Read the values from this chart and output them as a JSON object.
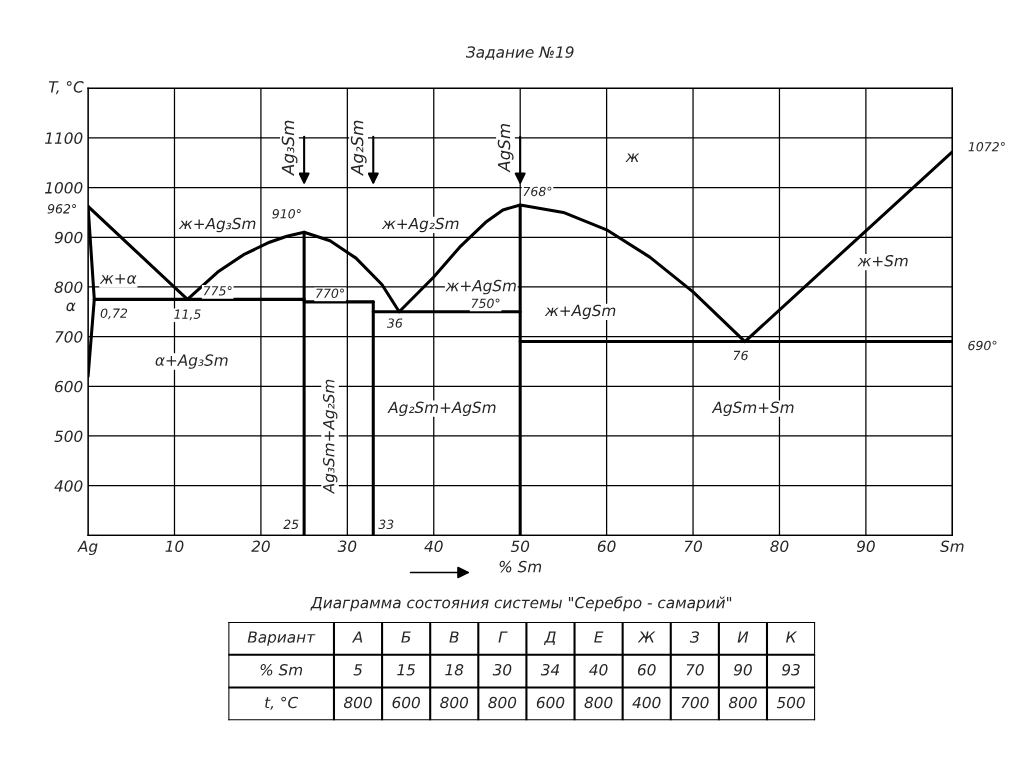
{
  "chart_data": [
    {
      "type": "line",
      "title": "Задание №19",
      "xlabel": "% Sm",
      "ylabel": "T, °C",
      "xlim": [
        0,
        100
      ],
      "ylim": [
        300,
        1200
      ],
      "xticks": [
        {
          "value": 0,
          "label": "Ag"
        },
        10,
        20,
        30,
        40,
        50,
        60,
        70,
        80,
        90,
        {
          "value": 100,
          "label": "Sm"
        }
      ],
      "yticks": [
        {
          "value": 300,
          "label": null
        },
        400,
        500,
        600,
        700,
        800,
        900,
        1000,
        1100,
        {
          "value": 1200,
          "label": null
        }
      ],
      "grid": true,
      "marker": "none",
      "line_style": "solid",
      "series": [
        {
          "color": "#000000",
          "x": [
            0,
            11.5,
            15,
            18,
            21,
            23,
            25,
            28,
            31,
            34,
            36,
            40,
            43,
            46,
            48,
            50,
            55,
            60,
            65,
            70,
            76,
            100
          ],
          "values": [
            962,
            775,
            830,
            865,
            890,
            902,
            910,
            893,
            858,
            805,
            750,
            820,
            880,
            930,
            955,
            965,
            950,
            915,
            860,
            790,
            690,
            1072
          ]
        },
        {
          "color": "#000000",
          "x": [
            0,
            0.72,
            0
          ],
          "values": [
            962,
            775,
            620
          ]
        },
        {
          "color": "#000000",
          "x": [
            0.72,
            25
          ],
          "values": [
            775,
            775
          ]
        },
        {
          "color": "#000000",
          "x": [
            25,
            33
          ],
          "values": [
            770,
            770
          ]
        },
        {
          "color": "#000000",
          "x": [
            33,
            50
          ],
          "values": [
            750,
            750
          ]
        },
        {
          "color": "#000000",
          "x": [
            50,
            100
          ],
          "values": [
            690,
            690
          ]
        },
        {
          "color": "#000000",
          "x": [
            25,
            25
          ],
          "values": [
            300,
            910
          ]
        },
        {
          "color": "#000000",
          "x": [
            33,
            33
          ],
          "values": [
            300,
            770
          ]
        },
        {
          "color": "#000000",
          "x": [
            50,
            50
          ],
          "values": [
            300,
            965
          ]
        }
      ],
      "annotations": [
        "Ag₃Sm",
        "Ag₂Sm",
        "AgSm",
        "Ag₃Sm+Ag₂Sm",
        "962°",
        "910°",
        "768°",
        "1072°",
        "775°",
        "770°",
        "750°",
        "690°",
        "0,72",
        "11,5",
        "36",
        "76",
        "25",
        "33",
        "α",
        "ж",
        "ж+Ag₃Sm",
        "ж+Ag₂Sm",
        "ж+α",
        "ж+AgSm",
        "ж+AgSm",
        "ж+Sm",
        "α+Ag₃Sm",
        "Ag₂Sm+AgSm",
        "AgSm+Sm"
      ]
    },
    {
      "type": "other",
      "title": "Диаграмма состояния системы \"Серебро - самарий\"",
      "categories": [
        "Вариант",
        "А",
        "Б",
        "В",
        "Г",
        "Д",
        "Е",
        "Ж",
        "З",
        "И",
        "К"
      ],
      "annotations": [
        "% Sm",
        "5",
        "15",
        "18",
        "30",
        "34",
        "40",
        "60",
        "70",
        "90",
        "93",
        "t, °C",
        "800",
        "600",
        "800",
        "800",
        "600",
        "800",
        "400",
        "700",
        "800",
        "500"
      ]
    }
  ]
}
